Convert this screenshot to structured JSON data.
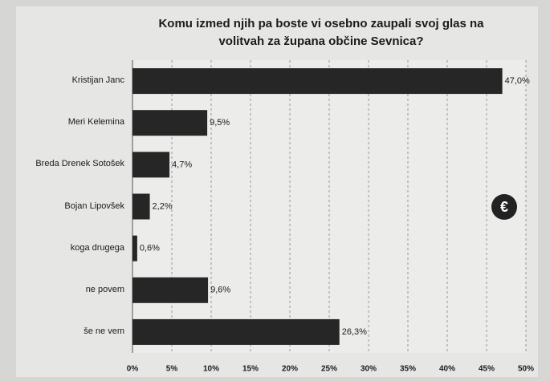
{
  "chart_data": {
    "type": "barh",
    "title": [
      "Komu izmed njih pa boste vi osebno zaupali svoj glas na",
      "volitvah za župana občine Sevnica?"
    ],
    "categories": [
      "Kristijan Janc",
      "Meri Kelemina",
      "Breda Drenek Sotošek",
      "Bojan Lipovšek",
      "koga drugega",
      "ne povem",
      "še ne vem"
    ],
    "values": [
      47.0,
      9.5,
      4.7,
      2.2,
      0.6,
      9.6,
      26.3
    ],
    "value_labels": [
      "47,0%",
      "9,5%",
      "4,7%",
      "2,2%",
      "0,6%",
      "9,6%",
      "26,3%"
    ],
    "color": "#262626",
    "xlim": [
      0,
      50
    ],
    "xticks": [
      {
        "value": 0,
        "label": "0%"
      },
      {
        "value": 5,
        "label": "5%"
      },
      {
        "value": 10,
        "label": "10%"
      },
      {
        "value": 15,
        "label": "15%"
      },
      {
        "value": 20,
        "label": "20%"
      },
      {
        "value": 25,
        "label": "25%"
      },
      {
        "value": 30,
        "label": "30%"
      },
      {
        "value": 35,
        "label": "35%"
      },
      {
        "value": 40,
        "label": "40%"
      },
      {
        "value": 45,
        "label": "45%"
      },
      {
        "value": 50,
        "label": "50%"
      }
    ],
    "grid": true
  }
}
